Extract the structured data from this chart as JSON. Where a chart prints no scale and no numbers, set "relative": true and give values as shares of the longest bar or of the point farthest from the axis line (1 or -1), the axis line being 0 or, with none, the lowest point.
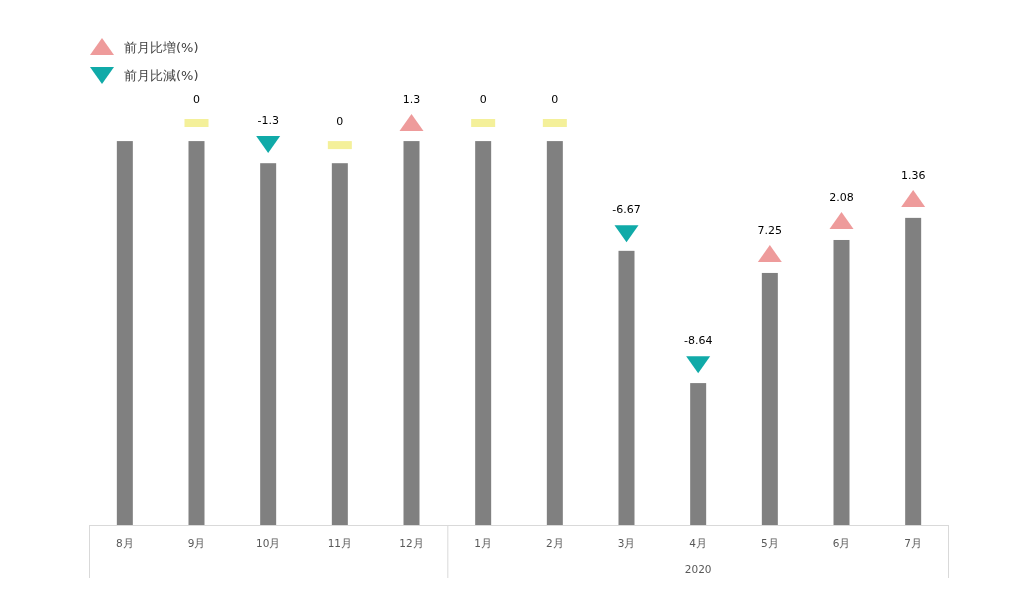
{
  "chart_data": {
    "type": "bar",
    "relative": true,
    "legend": "top left",
    "categories": [
      "8月",
      "9月",
      "10月",
      "11月",
      "12月",
      "1月",
      "2月",
      "3月",
      "4月",
      "5月",
      "6月",
      "7月"
    ],
    "series": [
      {
        "type": "bar",
        "color": "#808080",
        "values": [
          0.955,
          0.955,
          0.9,
          0.9,
          0.955,
          0.955,
          0.955,
          0.682,
          0.353,
          0.627,
          0.709,
          0.764
        ]
      },
      {
        "type": "scatter",
        "name": "前月比増(%)",
        "color": "#ee9b9b",
        "marker": "triangle",
        "values": [
          null,
          null,
          null,
          null,
          1,
          null,
          null,
          null,
          null,
          0.674,
          0.756,
          0.811
        ]
      },
      {
        "type": "scatter",
        "name": "前月比減(%)",
        "color": "#10aaa8",
        "marker": "triangle",
        "values": [
          null,
          null,
          0.948,
          null,
          null,
          null,
          null,
          0.726,
          0.4,
          null,
          null,
          null
        ]
      },
      {
        "type": "scatter",
        "color": "#f4f09a",
        "marker": "square",
        "values": [
          null,
          1,
          null,
          0.945,
          null,
          1,
          1,
          null,
          null,
          null,
          null,
          null
        ]
      }
    ],
    "annotations": [
      {
        "text": "0",
        "x": "9月",
        "y": 1
      },
      {
        "text": "-1.3",
        "x": "10月",
        "y": 0.948
      },
      {
        "text": "0",
        "x": "11月",
        "y": 0.945
      },
      {
        "text": "1.3",
        "x": "12月",
        "y": 1
      },
      {
        "text": "0",
        "x": "1月",
        "y": 1
      },
      {
        "text": "0",
        "x": "2月",
        "y": 1
      },
      {
        "text": "-6.67",
        "x": "3月",
        "y": 0.726
      },
      {
        "text": "-8.64",
        "x": "4月",
        "y": 0.4
      },
      {
        "text": "7.25",
        "x": "5月",
        "y": 0.674
      },
      {
        "text": "2.08",
        "x": "6月",
        "y": 0.756
      },
      {
        "text": "1.36",
        "x": "7月",
        "y": 0.811
      },
      "2020"
    ]
  }
}
